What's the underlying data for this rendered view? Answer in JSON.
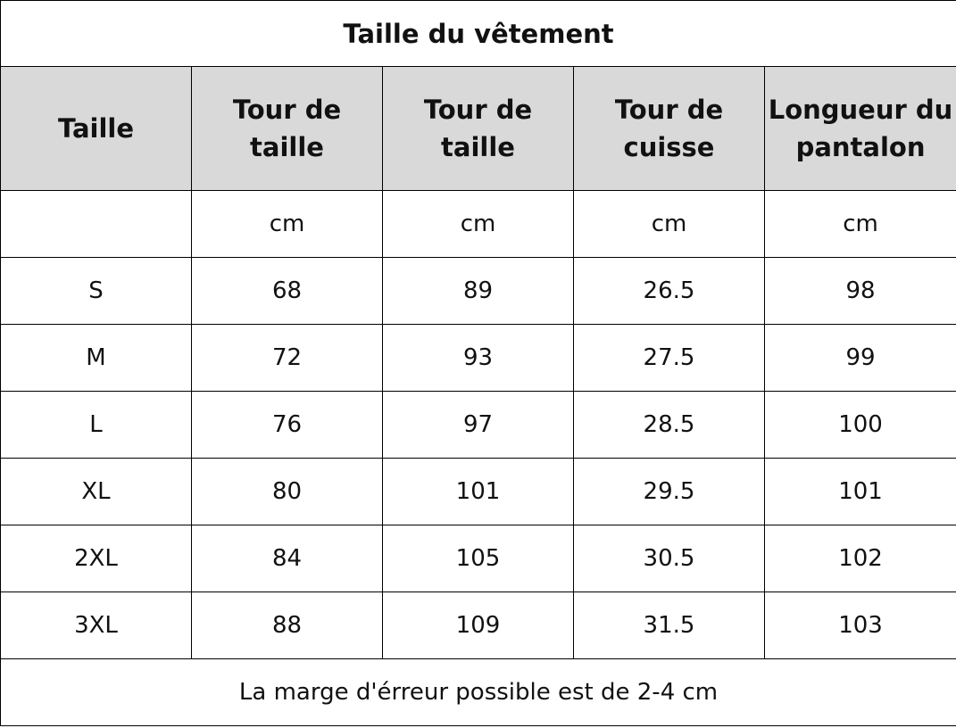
{
  "title": "Taille du vêtement",
  "headers": [
    "Taille",
    "Tour de taille",
    "Tour de taille",
    "Tour de\ncuisse",
    "Longueur du\npantalon"
  ],
  "units": [
    "",
    "cm",
    "cm",
    "cm",
    "cm"
  ],
  "rows": [
    [
      "S",
      "68",
      "89",
      "26.5",
      "98"
    ],
    [
      "M",
      "72",
      "93",
      "27.5",
      "99"
    ],
    [
      "L",
      "76",
      "97",
      "28.5",
      "100"
    ],
    [
      "XL",
      "80",
      "101",
      "29.5",
      "101"
    ],
    [
      "2XL",
      "84",
      "105",
      "30.5",
      "102"
    ],
    [
      "3XL",
      "88",
      "109",
      "31.5",
      "103"
    ]
  ],
  "footer": "La marge d'érreur possible est de 2-4 cm",
  "colors": {
    "header_bg": "#d9d9d9",
    "border": "#000000"
  }
}
